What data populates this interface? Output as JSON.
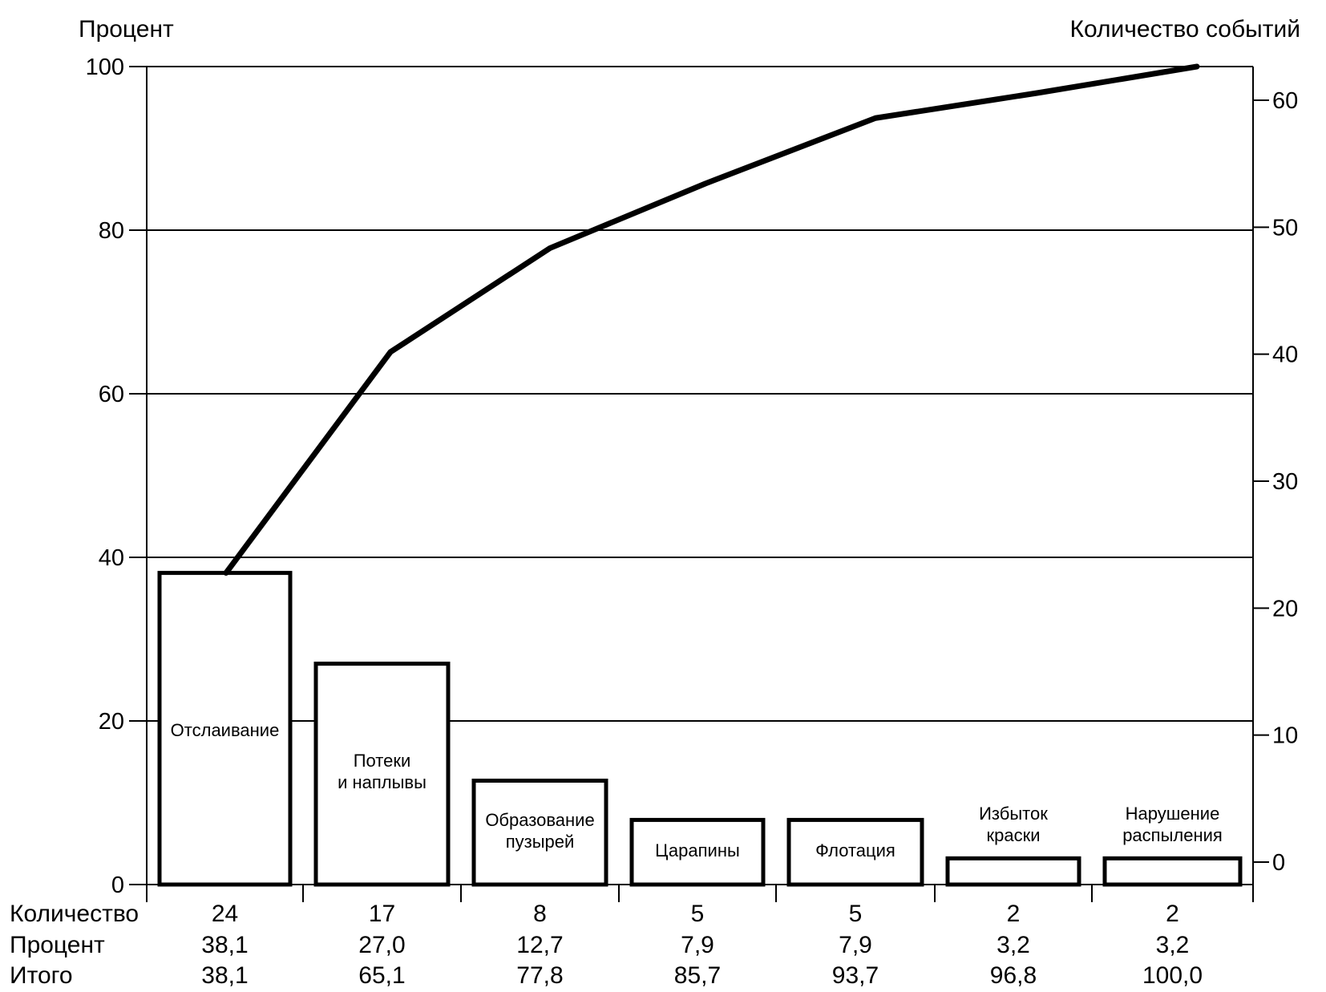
{
  "chart_data": {
    "type": "bar",
    "subtype": "pareto",
    "left_axis_title": "Процент",
    "right_axis_title": "Количество событий",
    "ylim": [
      0,
      100
    ],
    "y_ticks": [
      "0",
      "20",
      "40",
      "60",
      "80",
      "100"
    ],
    "y_tick_values": [
      0,
      20,
      40,
      60,
      80,
      100
    ],
    "y2lim": [
      0,
      63
    ],
    "y2_ticks": [
      "0",
      "10",
      "20",
      "30",
      "40",
      "50",
      "60"
    ],
    "y2_tick_values": [
      0,
      10,
      20,
      30,
      40,
      50,
      60
    ],
    "categories": [
      [
        "Отслаивание"
      ],
      [
        "Потеки",
        "и наплывы"
      ],
      [
        "Образование",
        "пузырей"
      ],
      [
        "Царапины"
      ],
      [
        "Флотация"
      ],
      [
        "Избыток",
        "краски"
      ],
      [
        "Нарушение",
        "распыления"
      ]
    ],
    "series": [
      {
        "name": "Процент",
        "kind": "bar",
        "values": [
          38.1,
          27.0,
          12.7,
          7.9,
          7.9,
          3.2,
          3.2
        ]
      },
      {
        "name": "Итого",
        "kind": "line",
        "values": [
          38.1,
          65.1,
          77.8,
          85.7,
          93.7,
          96.8,
          100.0
        ]
      }
    ],
    "table": {
      "row_labels": [
        "Количество",
        "Процент",
        "Итого"
      ],
      "rows": [
        [
          "24",
          "17",
          "8",
          "5",
          "5",
          "2",
          "2"
        ],
        [
          "38,1",
          "27,0",
          "12,7",
          "7,9",
          "7,9",
          "3,2",
          "3,2"
        ],
        [
          "38,1",
          "65,1",
          "77,8",
          "85,7",
          "93,7",
          "96,8",
          "100,0"
        ]
      ]
    }
  }
}
